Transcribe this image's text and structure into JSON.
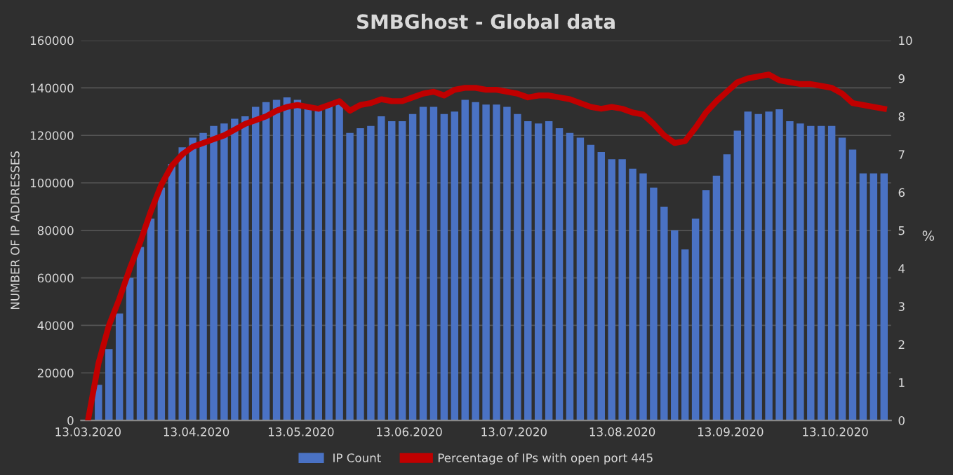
{
  "chart_data": {
    "type": "bar",
    "title": "SMBGhost - Global data",
    "ylabel": "NUMBER OF IP ADDRESSES",
    "y2label": "%",
    "x": [
      "2020-03-13",
      "2020-03-16",
      "2020-03-19",
      "2020-03-22",
      "2020-03-25",
      "2020-03-28",
      "2020-03-31",
      "2020-04-03",
      "2020-04-06",
      "2020-04-09",
      "2020-04-12",
      "2020-04-15",
      "2020-04-18",
      "2020-04-21",
      "2020-04-24",
      "2020-04-27",
      "2020-04-30",
      "2020-05-03",
      "2020-05-06",
      "2020-05-09",
      "2020-05-12",
      "2020-05-15",
      "2020-05-18",
      "2020-05-21",
      "2020-05-24",
      "2020-05-27",
      "2020-05-30",
      "2020-06-02",
      "2020-06-05",
      "2020-06-08",
      "2020-06-11",
      "2020-06-14",
      "2020-06-17",
      "2020-06-20",
      "2020-06-23",
      "2020-06-26",
      "2020-06-29",
      "2020-07-02",
      "2020-07-05",
      "2020-07-08",
      "2020-07-11",
      "2020-07-14",
      "2020-07-17",
      "2020-07-20",
      "2020-07-23",
      "2020-07-26",
      "2020-07-29",
      "2020-08-01",
      "2020-08-04",
      "2020-08-07",
      "2020-08-10",
      "2020-08-13",
      "2020-08-16",
      "2020-08-19",
      "2020-08-22",
      "2020-08-25",
      "2020-08-28",
      "2020-08-31",
      "2020-09-03",
      "2020-09-06",
      "2020-09-09",
      "2020-09-12",
      "2020-09-15",
      "2020-09-18",
      "2020-09-21",
      "2020-09-24",
      "2020-09-27",
      "2020-09-30",
      "2020-10-03",
      "2020-10-06",
      "2020-10-09",
      "2020-10-12",
      "2020-10-15",
      "2020-10-18",
      "2020-10-21",
      "2020-10-24",
      "2020-10-27"
    ],
    "series": [
      {
        "name": "IP Count",
        "color": "#4a72c4",
        "values": [
          0,
          15000,
          30000,
          45000,
          60000,
          73000,
          85000,
          98000,
          108000,
          115000,
          119000,
          121000,
          124000,
          125000,
          127000,
          128000,
          132000,
          134000,
          135000,
          136000,
          135000,
          132000,
          131000,
          133000,
          133000,
          121000,
          123000,
          124000,
          128000,
          126000,
          126000,
          129000,
          132000,
          132000,
          129000,
          130000,
          135000,
          134000,
          133000,
          133000,
          132000,
          129000,
          126000,
          125000,
          126000,
          123000,
          121000,
          119000,
          116000,
          113000,
          110000,
          110000,
          106000,
          104000,
          98000,
          90000,
          80000,
          72000,
          85000,
          97000,
          103000,
          112000,
          122000,
          130000,
          129000,
          130000,
          131000,
          126000,
          125000,
          124000,
          124000,
          124000,
          119000,
          114000,
          104000,
          104000,
          104000
        ]
      },
      {
        "name": "Percentage of IPs with open port 445",
        "type": "line",
        "axis": "y2",
        "color": "#c00000",
        "values": [
          0,
          1.5,
          2.5,
          3.2,
          4.0,
          4.7,
          5.5,
          6.2,
          6.7,
          7.0,
          7.2,
          7.3,
          7.4,
          7.5,
          7.65,
          7.8,
          7.9,
          8.0,
          8.15,
          8.25,
          8.3,
          8.25,
          8.2,
          8.3,
          8.4,
          8.15,
          8.3,
          8.35,
          8.45,
          8.4,
          8.4,
          8.5,
          8.6,
          8.65,
          8.55,
          8.7,
          8.75,
          8.75,
          8.7,
          8.7,
          8.65,
          8.6,
          8.5,
          8.55,
          8.55,
          8.5,
          8.45,
          8.35,
          8.25,
          8.2,
          8.25,
          8.2,
          8.1,
          8.05,
          7.8,
          7.5,
          7.3,
          7.35,
          7.7,
          8.1,
          8.4,
          8.65,
          8.9,
          9.0,
          9.05,
          9.1,
          8.95,
          8.9,
          8.85,
          8.85,
          8.8,
          8.75,
          8.6,
          8.35,
          8.3,
          8.25,
          8.2
        ]
      }
    ],
    "xlim": [
      "2020-03-11",
      "2020-10-29"
    ],
    "xticks": [
      {
        "value": "2020-03-13",
        "label": "13.03.2020"
      },
      {
        "value": "2020-04-13",
        "label": "13.04.2020"
      },
      {
        "value": "2020-05-13",
        "label": "13.05.2020"
      },
      {
        "value": "2020-06-13",
        "label": "13.06.2020"
      },
      {
        "value": "2020-07-13",
        "label": "13.07.2020"
      },
      {
        "value": "2020-08-13",
        "label": "13.08.2020"
      },
      {
        "value": "2020-09-13",
        "label": "13.09.2020"
      },
      {
        "value": "2020-10-13",
        "label": "13.10.2020"
      }
    ],
    "ylim": [
      0,
      160000
    ],
    "yticks": [
      0,
      20000,
      40000,
      60000,
      80000,
      100000,
      120000,
      140000,
      160000
    ],
    "y2lim": [
      0,
      10
    ],
    "y2ticks": [
      0,
      1,
      2,
      3,
      4,
      5,
      6,
      7,
      8,
      9,
      10
    ],
    "grid": "y",
    "legend": "bottom"
  }
}
